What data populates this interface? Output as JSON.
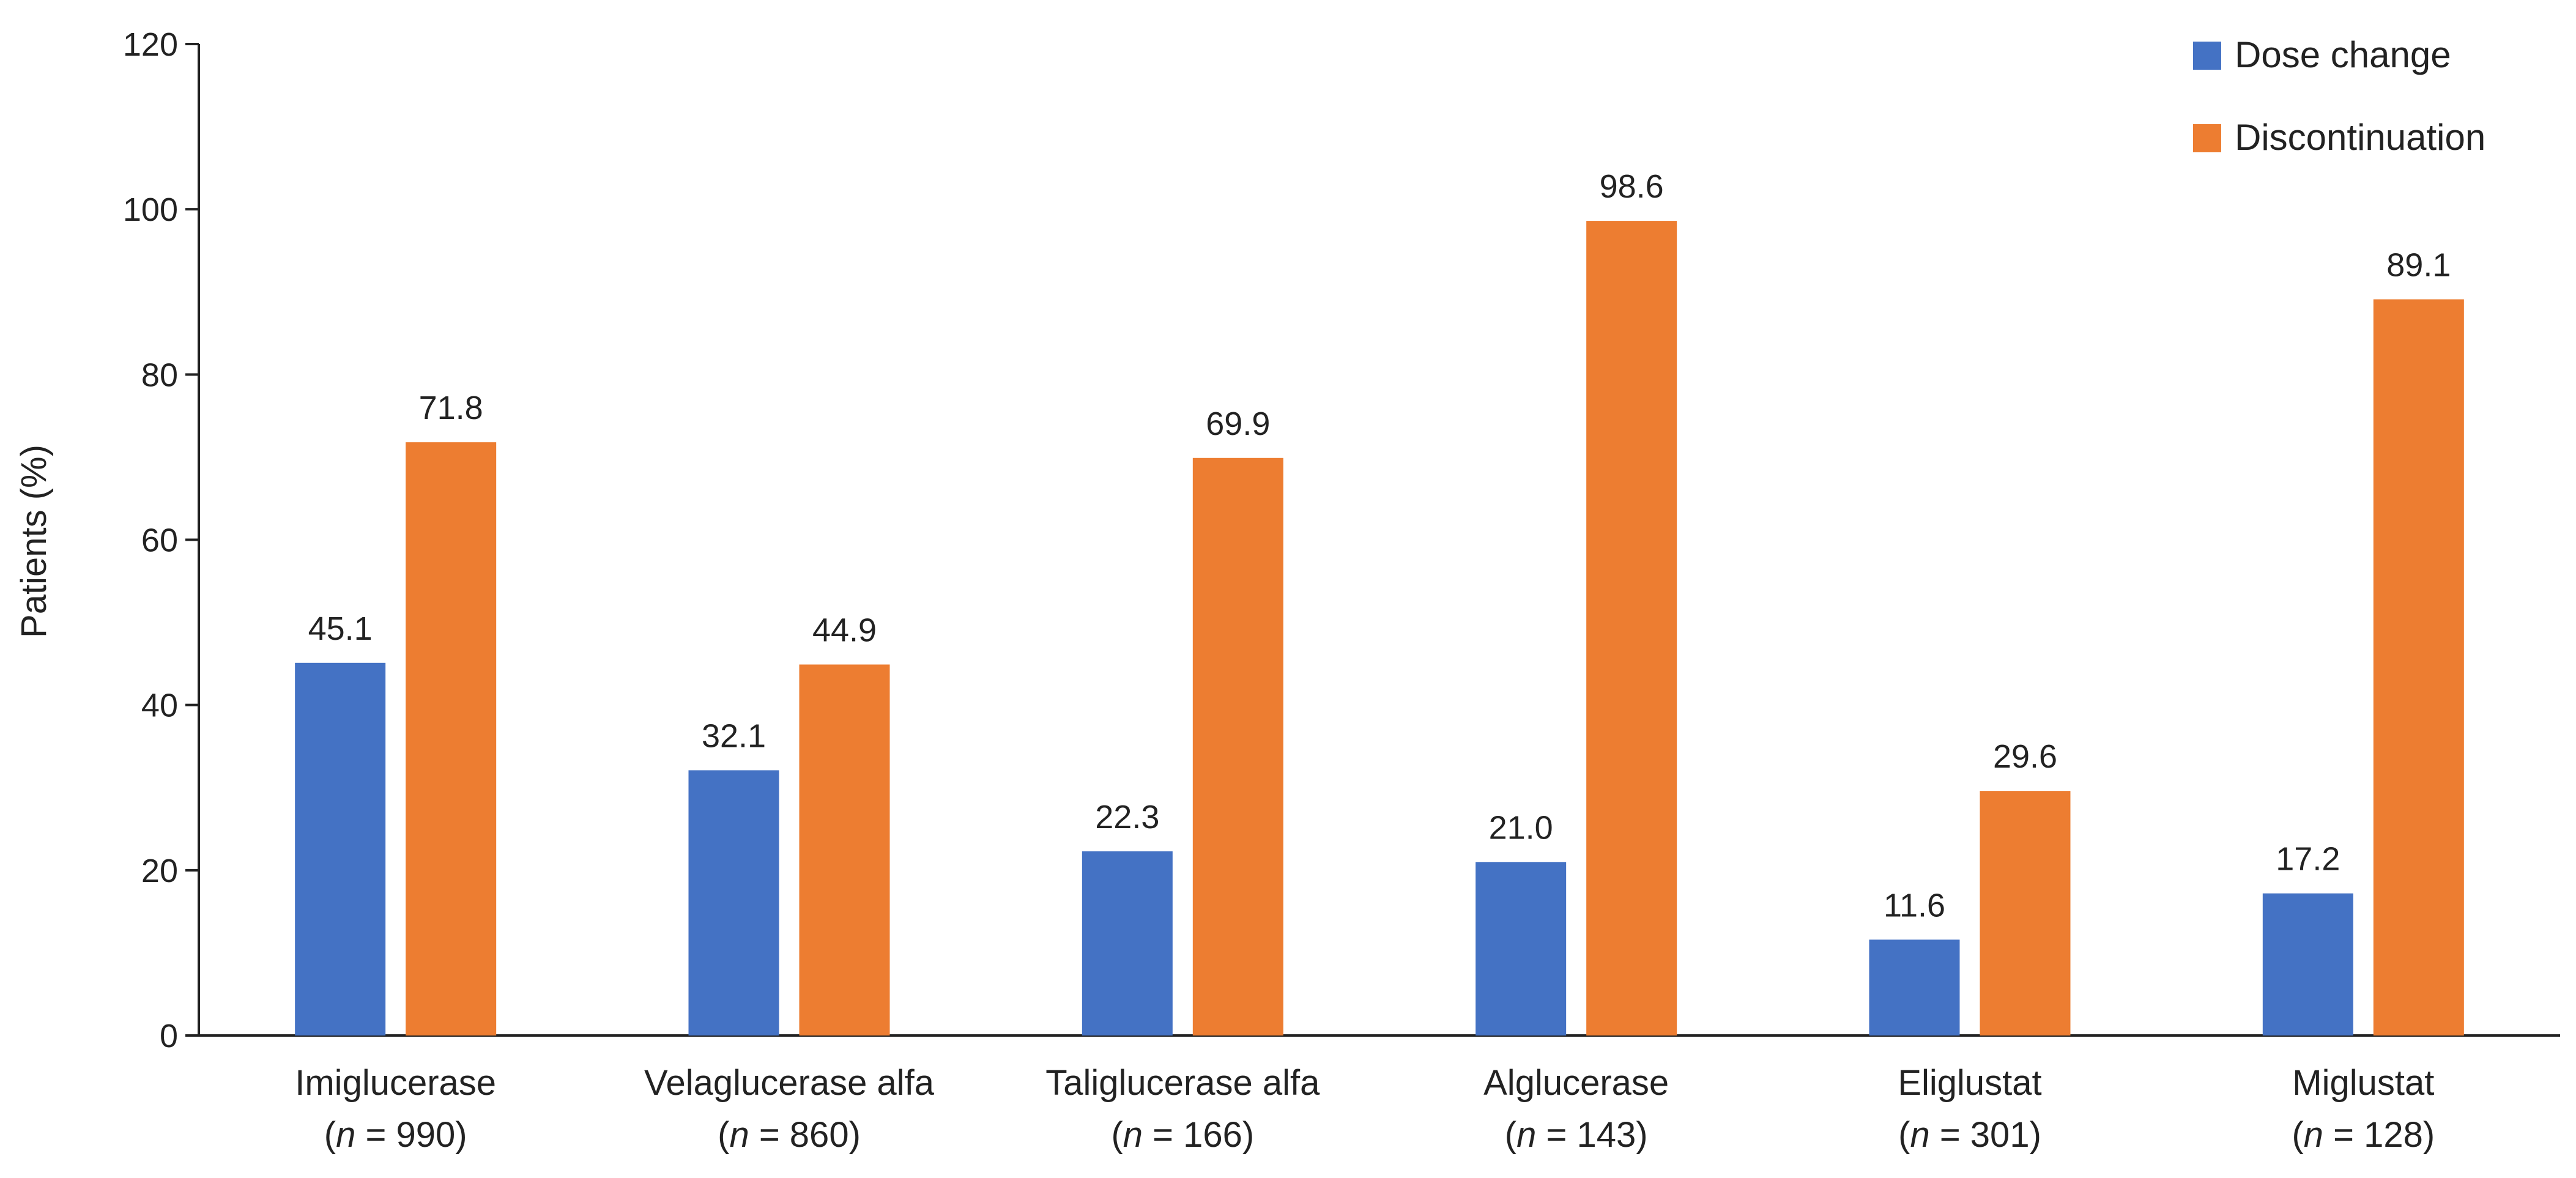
{
  "chart_data": {
    "type": "bar",
    "title": "",
    "xlabel": "",
    "ylabel": "Patients (%)",
    "ylim": [
      0,
      120
    ],
    "yticks": [
      0,
      20,
      40,
      60,
      80,
      100,
      120
    ],
    "grid": false,
    "legend_position": "top-right",
    "categories": [
      {
        "name": "Imiglucerase",
        "n_label": "n",
        "n_value": "= 990"
      },
      {
        "name": "Velaglucerase alfa",
        "n_label": "n",
        "n_value": "= 860"
      },
      {
        "name": "Taliglucerase alfa",
        "n_label": "n",
        "n_value": "= 166"
      },
      {
        "name": "Alglucerase",
        "n_label": "n",
        "n_value": "= 143"
      },
      {
        "name": "Eliglustat",
        "n_label": "n",
        "n_value": "= 301"
      },
      {
        "name": "Miglustat",
        "n_label": "n",
        "n_value": "= 128"
      }
    ],
    "series": [
      {
        "name": "Dose change",
        "color": "#4472C4",
        "values": [
          45.1,
          32.1,
          22.3,
          21.0,
          11.6,
          17.2
        ]
      },
      {
        "name": "Discontinuation",
        "color": "#ED7D31",
        "values": [
          71.8,
          44.9,
          69.9,
          98.6,
          29.6,
          89.1
        ]
      }
    ]
  }
}
